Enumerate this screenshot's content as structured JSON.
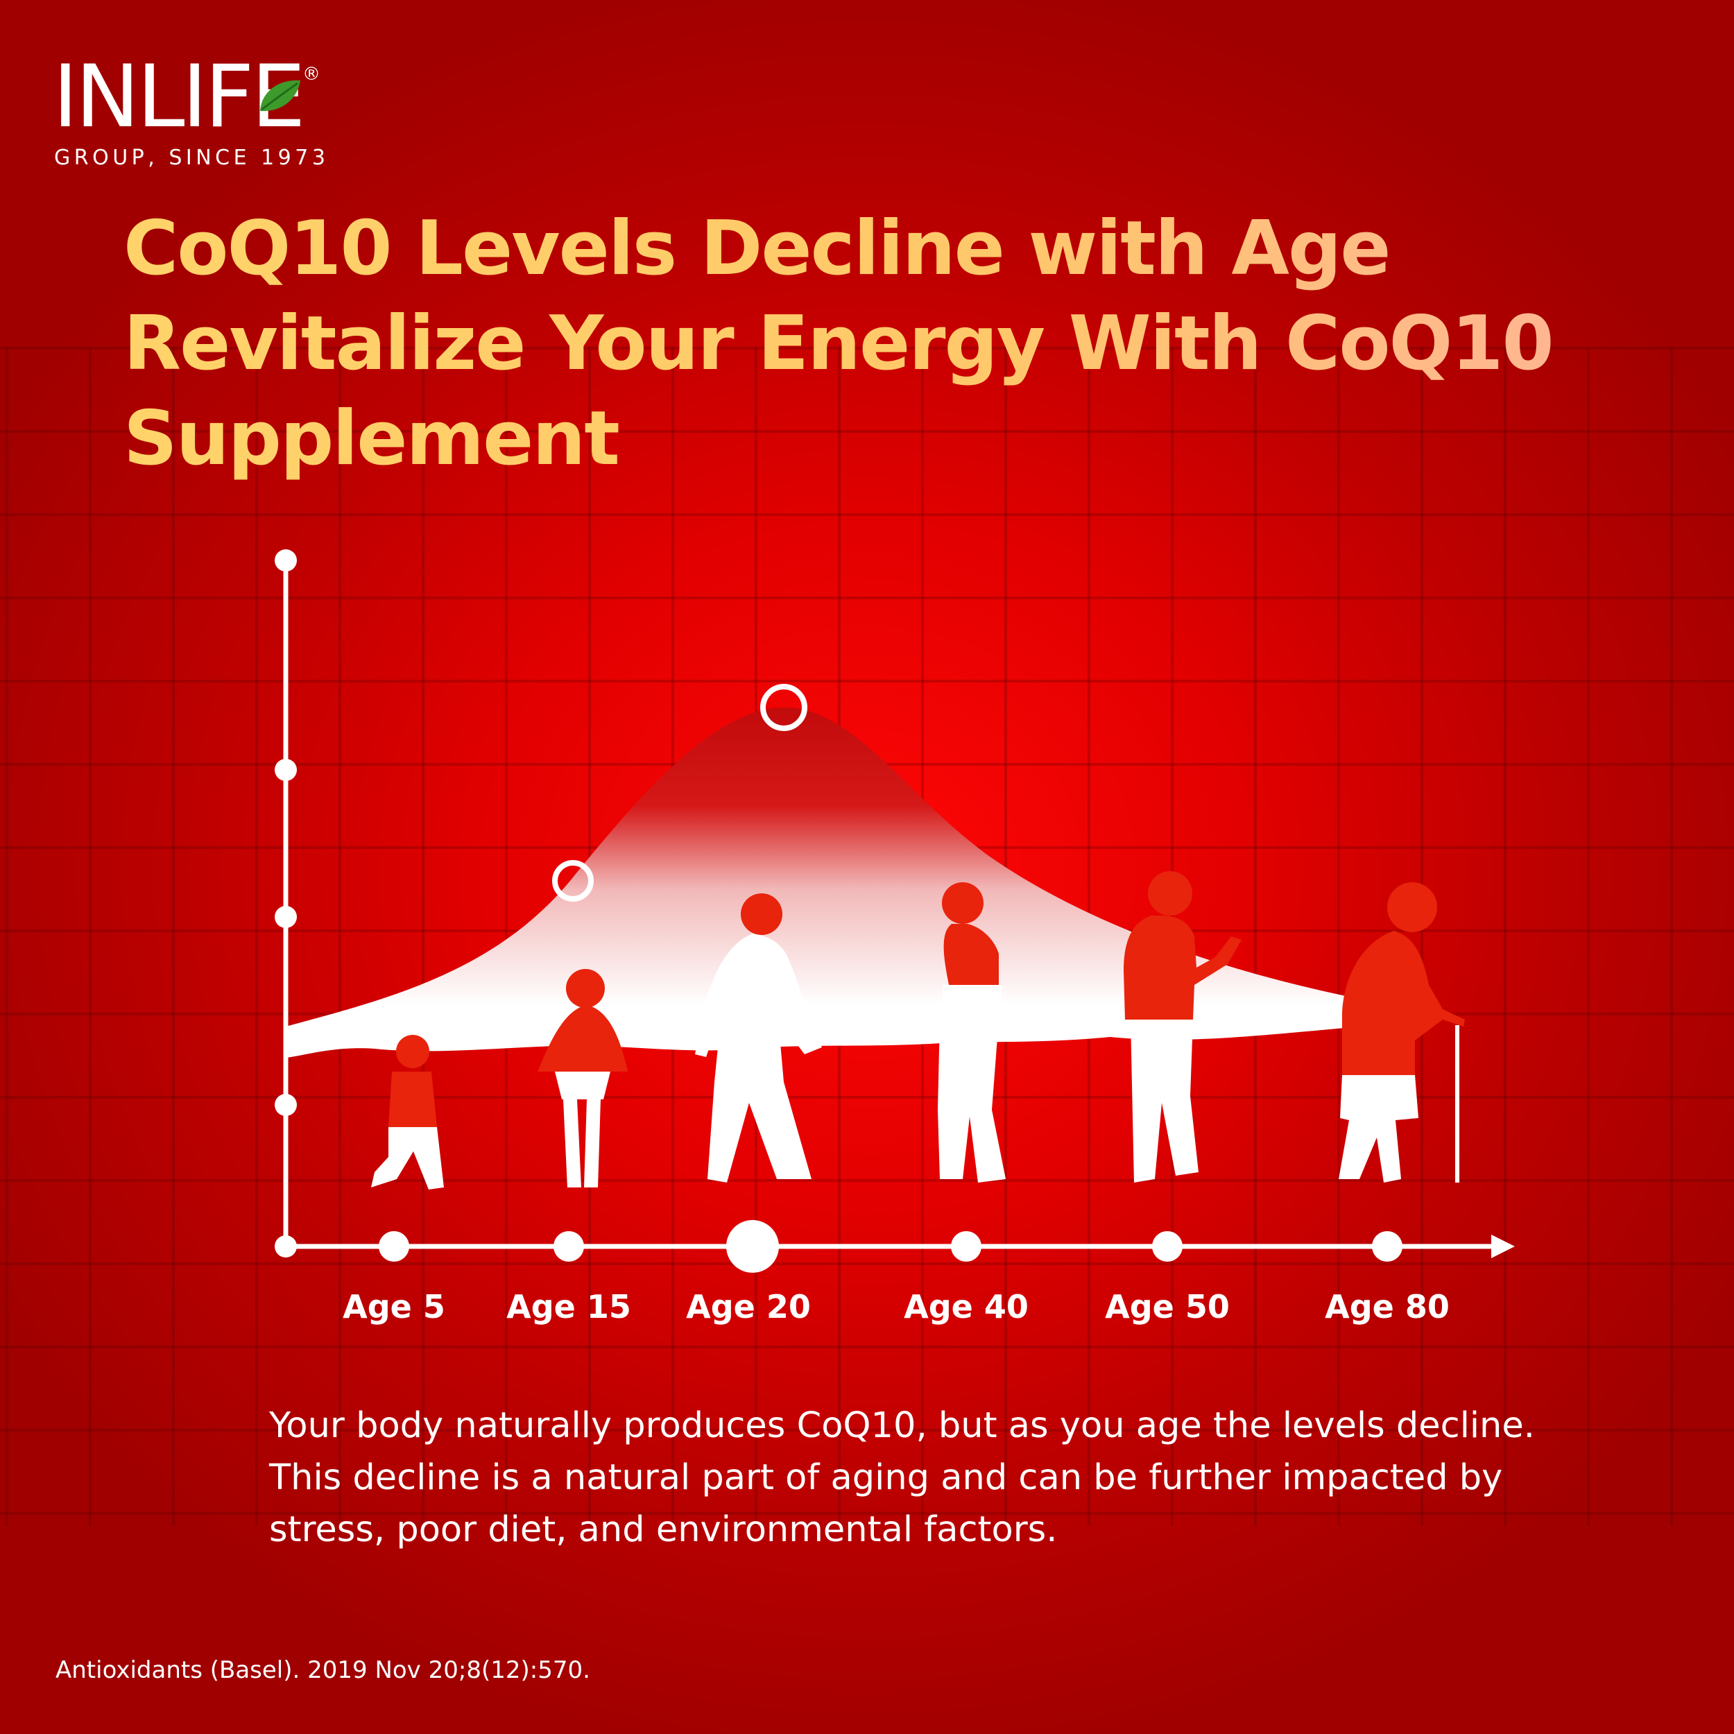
{
  "brand": {
    "name": "INLIFE",
    "registered": "®",
    "tagline": "GROUP, SINCE 1973"
  },
  "headline": {
    "line1": "CoQ10 Levels Decline with Age",
    "line2": "Revitalize Your Energy With CoQ10",
    "line3": "Supplement"
  },
  "description": "Your body naturally produces CoQ10, but as you age the levels decline. This decline is a natural part of aging and can be further impacted by stress, poor diet, and environmental factors.",
  "source": "Antioxidants (Basel). 2019 Nov 20;8(12):570.",
  "chart_data": {
    "type": "area",
    "categories": [
      "Age 5",
      "Age 15",
      "Age 20",
      "Age 40",
      "Age 50",
      "Age 80"
    ],
    "title": "",
    "xlabel": "",
    "ylabel": "",
    "highlighted": [
      "Age 15",
      "Age 20"
    ],
    "grid": true,
    "legend": "none",
    "colors": {
      "curve": "#ffffff",
      "figure": "#e8240c",
      "axis": "#ffffff"
    }
  }
}
